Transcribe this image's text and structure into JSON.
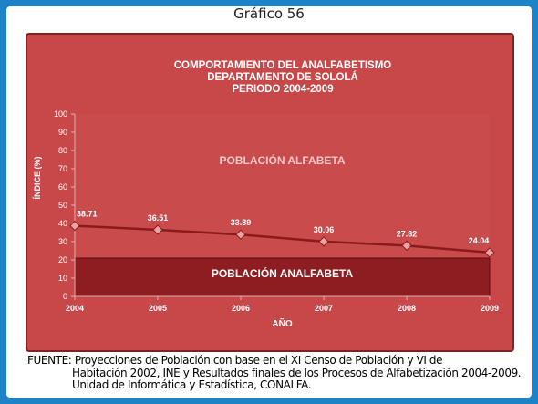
{
  "graphic_label": "Gráfico 56",
  "chart_data": {
    "type": "line",
    "title_lines": [
      "COMPORTAMIENTO DEL ANALFABETISMO",
      "DEPARTAMENTO DE SOLOLÁ",
      "PERIODO 2004-2009"
    ],
    "xlabel": "AÑO",
    "ylabel": "ÍNDICE (%)",
    "categories": [
      "2004",
      "2005",
      "2006",
      "2007",
      "2008",
      "2009"
    ],
    "series": [
      {
        "values": [
          38.71,
          36.51,
          33.89,
          30.06,
          27.82,
          24.04
        ]
      }
    ],
    "data_labels": [
      "38.71",
      "36.51",
      "33.89",
      "30.06",
      "27.82",
      "24.04"
    ],
    "ylim": [
      0,
      100
    ],
    "yticks": [
      0,
      10,
      20,
      30,
      40,
      50,
      60,
      70,
      80,
      90,
      100
    ],
    "annotations": {
      "upper": "POBLACIÓN ALFABETA",
      "lower": "POBLACIÓN ANALFABETA"
    },
    "grid": false,
    "colors": {
      "plot_bg": "#c94b4c",
      "lower_band": "#8e1d21",
      "line": "#8b1a1a",
      "marker": "#e9a3a3"
    }
  },
  "source": {
    "line1": "FUENTE: Proyecciones de Población con base en el XI Censo de Población y VI de",
    "line2": "Habitación 2002, INE y Resultados finales de los Procesos de Alfabetización 2004-2009.",
    "line3": "Unidad de Informática y Estadística, CONALFA."
  }
}
